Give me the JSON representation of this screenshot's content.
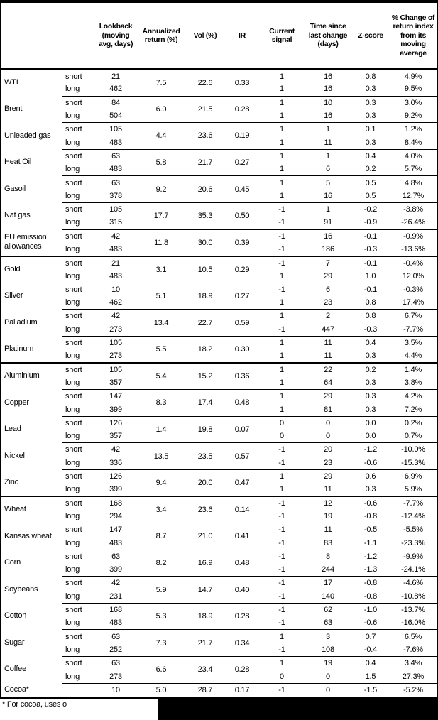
{
  "table": {
    "columns": [
      {
        "key": "lookback",
        "label": "Lookback (moving avg, days)"
      },
      {
        "key": "annualized_return",
        "label": "Annualized return (%)"
      },
      {
        "key": "vol",
        "label": "Vol (%)"
      },
      {
        "key": "ir",
        "label": "IR"
      },
      {
        "key": "current_signal",
        "label": "Current signal"
      },
      {
        "key": "time_since",
        "label": "Time since last change (days)"
      },
      {
        "key": "zscore",
        "label": "Z-score"
      },
      {
        "key": "pct_change",
        "label": "% Change of return index from its moving average"
      }
    ],
    "sections": [
      {
        "name": "energy",
        "commodities": [
          {
            "name": "WTI",
            "annualized_return": "7.5",
            "vol": "22.6",
            "ir": "0.33",
            "rows": [
              {
                "pos": "short",
                "lookback": "21",
                "signal": "1",
                "time_since": "16",
                "zscore": "0.8",
                "pct_change": "4.9%"
              },
              {
                "pos": "long",
                "lookback": "462",
                "signal": "1",
                "time_since": "16",
                "zscore": "0.3",
                "pct_change": "9.5%"
              }
            ]
          },
          {
            "name": "Brent",
            "annualized_return": "6.0",
            "vol": "21.5",
            "ir": "0.28",
            "rows": [
              {
                "pos": "short",
                "lookback": "84",
                "signal": "1",
                "time_since": "10",
                "zscore": "0.3",
                "pct_change": "3.0%"
              },
              {
                "pos": "long",
                "lookback": "504",
                "signal": "1",
                "time_since": "16",
                "zscore": "0.3",
                "pct_change": "9.2%"
              }
            ]
          },
          {
            "name": "Unleaded gas",
            "annualized_return": "4.4",
            "vol": "23.6",
            "ir": "0.19",
            "rows": [
              {
                "pos": "short",
                "lookback": "105",
                "signal": "1",
                "time_since": "1",
                "zscore": "0.1",
                "pct_change": "1.2%"
              },
              {
                "pos": "long",
                "lookback": "483",
                "signal": "1",
                "time_since": "11",
                "zscore": "0.3",
                "pct_change": "8.4%"
              }
            ]
          },
          {
            "name": "Heat Oil",
            "annualized_return": "5.8",
            "vol": "21.7",
            "ir": "0.27",
            "rows": [
              {
                "pos": "short",
                "lookback": "63",
                "signal": "1",
                "time_since": "1",
                "zscore": "0.4",
                "pct_change": "4.0%"
              },
              {
                "pos": "long",
                "lookback": "483",
                "signal": "1",
                "time_since": "6",
                "zscore": "0.2",
                "pct_change": "5.7%"
              }
            ]
          },
          {
            "name": "Gasoil",
            "annualized_return": "9.2",
            "vol": "20.6",
            "ir": "0.45",
            "rows": [
              {
                "pos": "short",
                "lookback": "63",
                "signal": "1",
                "time_since": "5",
                "zscore": "0.5",
                "pct_change": "4.8%"
              },
              {
                "pos": "long",
                "lookback": "378",
                "signal": "1",
                "time_since": "16",
                "zscore": "0.5",
                "pct_change": "12.7%"
              }
            ]
          },
          {
            "name": "Nat gas",
            "annualized_return": "17.7",
            "vol": "35.3",
            "ir": "0.50",
            "rows": [
              {
                "pos": "short",
                "lookback": "105",
                "signal": "-1",
                "time_since": "1",
                "zscore": "-0.2",
                "pct_change": "-3.8%"
              },
              {
                "pos": "long",
                "lookback": "315",
                "signal": "-1",
                "time_since": "91",
                "zscore": "-0.9",
                "pct_change": "-26.4%"
              }
            ]
          },
          {
            "name": "EU emission allowances",
            "annualized_return": "11.8",
            "vol": "30.0",
            "ir": "0.39",
            "rows": [
              {
                "pos": "short",
                "lookback": "42",
                "signal": "-1",
                "time_since": "16",
                "zscore": "-0.1",
                "pct_change": "-0.9%"
              },
              {
                "pos": "long",
                "lookback": "483",
                "signal": "-1",
                "time_since": "186",
                "zscore": "-0.3",
                "pct_change": "-13.6%"
              }
            ]
          }
        ]
      },
      {
        "name": "precious-metals",
        "commodities": [
          {
            "name": "Gold",
            "annualized_return": "3.1",
            "vol": "10.5",
            "ir": "0.29",
            "rows": [
              {
                "pos": "short",
                "lookback": "21",
                "signal": "-1",
                "time_since": "7",
                "zscore": "-0.1",
                "pct_change": "-0.4%"
              },
              {
                "pos": "long",
                "lookback": "483",
                "signal": "1",
                "time_since": "29",
                "zscore": "1.0",
                "pct_change": "12.0%"
              }
            ]
          },
          {
            "name": "Silver",
            "annualized_return": "5.1",
            "vol": "18.9",
            "ir": "0.27",
            "rows": [
              {
                "pos": "short",
                "lookback": "10",
                "signal": "-1",
                "time_since": "6",
                "zscore": "-0.1",
                "pct_change": "-0.3%"
              },
              {
                "pos": "long",
                "lookback": "462",
                "signal": "1",
                "time_since": "23",
                "zscore": "0.8",
                "pct_change": "17.4%"
              }
            ]
          },
          {
            "name": "Palladium",
            "annualized_return": "13.4",
            "vol": "22.7",
            "ir": "0.59",
            "rows": [
              {
                "pos": "short",
                "lookback": "42",
                "signal": "1",
                "time_since": "2",
                "zscore": "0.8",
                "pct_change": "6.7%"
              },
              {
                "pos": "long",
                "lookback": "273",
                "signal": "-1",
                "time_since": "447",
                "zscore": "-0.3",
                "pct_change": "-7.7%"
              }
            ]
          },
          {
            "name": "Platinum",
            "annualized_return": "5.5",
            "vol": "18.2",
            "ir": "0.30",
            "rows": [
              {
                "pos": "short",
                "lookback": "105",
                "signal": "1",
                "time_since": "11",
                "zscore": "0.4",
                "pct_change": "3.5%"
              },
              {
                "pos": "long",
                "lookback": "273",
                "signal": "1",
                "time_since": "11",
                "zscore": "0.3",
                "pct_change": "4.4%"
              }
            ]
          }
        ]
      },
      {
        "name": "base-metals",
        "commodities": [
          {
            "name": "Aluminium",
            "annualized_return": "5.4",
            "vol": "15.2",
            "ir": "0.36",
            "rows": [
              {
                "pos": "short",
                "lookback": "105",
                "signal": "1",
                "time_since": "22",
                "zscore": "0.2",
                "pct_change": "1.4%"
              },
              {
                "pos": "long",
                "lookback": "357",
                "signal": "1",
                "time_since": "64",
                "zscore": "0.3",
                "pct_change": "3.8%"
              }
            ]
          },
          {
            "name": "Copper",
            "annualized_return": "8.3",
            "vol": "17.4",
            "ir": "0.48",
            "rows": [
              {
                "pos": "short",
                "lookback": "147",
                "signal": "1",
                "time_since": "29",
                "zscore": "0.3",
                "pct_change": "4.2%"
              },
              {
                "pos": "long",
                "lookback": "399",
                "signal": "1",
                "time_since": "81",
                "zscore": "0.3",
                "pct_change": "7.2%"
              }
            ]
          },
          {
            "name": "Lead",
            "annualized_return": "1.4",
            "vol": "19.8",
            "ir": "0.07",
            "rows": [
              {
                "pos": "short",
                "lookback": "126",
                "signal": "0",
                "time_since": "0",
                "zscore": "0.0",
                "pct_change": "0.2%"
              },
              {
                "pos": "long",
                "lookback": "357",
                "signal": "0",
                "time_since": "0",
                "zscore": "0.0",
                "pct_change": "0.7%"
              }
            ]
          },
          {
            "name": "Nickel",
            "annualized_return": "13.5",
            "vol": "23.5",
            "ir": "0.57",
            "rows": [
              {
                "pos": "short",
                "lookback": "42",
                "signal": "-1",
                "time_since": "20",
                "zscore": "-1.2",
                "pct_change": "-10.0%"
              },
              {
                "pos": "long",
                "lookback": "336",
                "signal": "-1",
                "time_since": "23",
                "zscore": "-0.6",
                "pct_change": "-15.3%"
              }
            ]
          },
          {
            "name": "Zinc",
            "annualized_return": "9.4",
            "vol": "20.0",
            "ir": "0.47",
            "rows": [
              {
                "pos": "short",
                "lookback": "126",
                "signal": "1",
                "time_since": "29",
                "zscore": "0.6",
                "pct_change": "6.9%"
              },
              {
                "pos": "long",
                "lookback": "399",
                "signal": "1",
                "time_since": "11",
                "zscore": "0.3",
                "pct_change": "5.9%"
              }
            ]
          }
        ]
      },
      {
        "name": "agriculture",
        "commodities": [
          {
            "name": "Wheat",
            "annualized_return": "3.4",
            "vol": "23.6",
            "ir": "0.14",
            "rows": [
              {
                "pos": "short",
                "lookback": "168",
                "signal": "-1",
                "time_since": "12",
                "zscore": "-0.6",
                "pct_change": "-7.7%"
              },
              {
                "pos": "long",
                "lookback": "294",
                "signal": "-1",
                "time_since": "19",
                "zscore": "-0.8",
                "pct_change": "-12.4%"
              }
            ]
          },
          {
            "name": "Kansas wheat",
            "annualized_return": "8.7",
            "vol": "21.0",
            "ir": "0.41",
            "rows": [
              {
                "pos": "short",
                "lookback": "147",
                "signal": "-1",
                "time_since": "11",
                "zscore": "-0.5",
                "pct_change": "-5.5%"
              },
              {
                "pos": "long",
                "lookback": "483",
                "signal": "-1",
                "time_since": "83",
                "zscore": "-1.1",
                "pct_change": "-23.3%"
              }
            ]
          },
          {
            "name": "Corn",
            "annualized_return": "8.2",
            "vol": "16.9",
            "ir": "0.48",
            "rows": [
              {
                "pos": "short",
                "lookback": "63",
                "signal": "-1",
                "time_since": "8",
                "zscore": "-1.2",
                "pct_change": "-9.9%"
              },
              {
                "pos": "long",
                "lookback": "399",
                "signal": "-1",
                "time_since": "244",
                "zscore": "-1.3",
                "pct_change": "-24.1%"
              }
            ]
          },
          {
            "name": "Soybeans",
            "annualized_return": "5.9",
            "vol": "14.7",
            "ir": "0.40",
            "rows": [
              {
                "pos": "short",
                "lookback": "42",
                "signal": "-1",
                "time_since": "17",
                "zscore": "-0.8",
                "pct_change": "-4.6%"
              },
              {
                "pos": "long",
                "lookback": "231",
                "signal": "-1",
                "time_since": "140",
                "zscore": "-0.8",
                "pct_change": "-10.8%"
              }
            ]
          },
          {
            "name": "Cotton",
            "annualized_return": "5.3",
            "vol": "18.9",
            "ir": "0.28",
            "rows": [
              {
                "pos": "short",
                "lookback": "168",
                "signal": "-1",
                "time_since": "62",
                "zscore": "-1.0",
                "pct_change": "-13.7%"
              },
              {
                "pos": "long",
                "lookback": "483",
                "signal": "-1",
                "time_since": "63",
                "zscore": "-0.6",
                "pct_change": "-16.0%"
              }
            ]
          },
          {
            "name": "Sugar",
            "annualized_return": "7.3",
            "vol": "21.7",
            "ir": "0.34",
            "rows": [
              {
                "pos": "short",
                "lookback": "63",
                "signal": "1",
                "time_since": "3",
                "zscore": "0.7",
                "pct_change": "6.5%"
              },
              {
                "pos": "long",
                "lookback": "252",
                "signal": "-1",
                "time_since": "108",
                "zscore": "-0.4",
                "pct_change": "-7.6%"
              }
            ]
          },
          {
            "name": "Coffee",
            "annualized_return": "6.6",
            "vol": "23.4",
            "ir": "0.28",
            "rows": [
              {
                "pos": "short",
                "lookback": "63",
                "signal": "1",
                "time_since": "19",
                "zscore": "0.4",
                "pct_change": "3.4%"
              },
              {
                "pos": "long",
                "lookback": "273",
                "signal": "0",
                "time_since": "0",
                "zscore": "1.5",
                "pct_change": "27.3%"
              }
            ]
          },
          {
            "name": "Cocoa*",
            "annualized_return": "5.0",
            "vol": "28.7",
            "ir": "0.17",
            "rows": [
              {
                "pos": "",
                "lookback": "10",
                "signal": "-1",
                "time_since": "0",
                "zscore": "-1.5",
                "pct_change": "-5.2%"
              }
            ]
          }
        ]
      }
    ]
  },
  "footnote": {
    "visible_text": "* For cocoa, uses o",
    "redacted": true
  },
  "colors": {
    "text": "#000000",
    "lines": "#000000",
    "background": "#ffffff",
    "redaction": "#000000"
  }
}
